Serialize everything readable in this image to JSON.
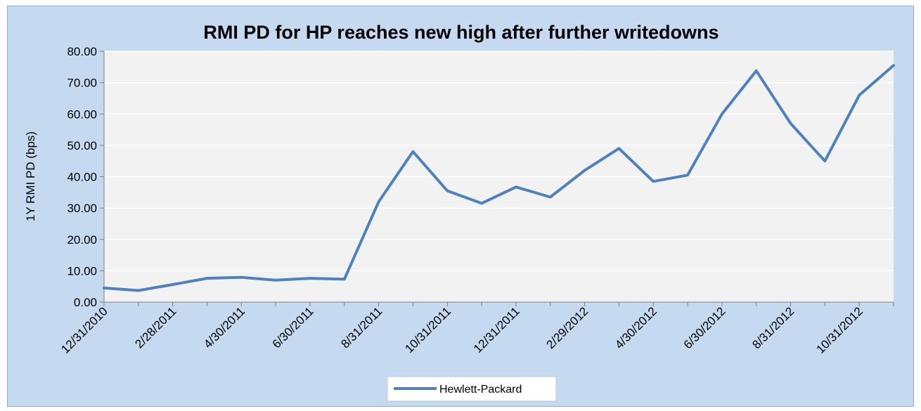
{
  "chart_data": {
    "type": "line",
    "title": "RMI PD for HP reaches new high after further writedowns",
    "xlabel": "",
    "ylabel": "1Y RMI PD (bps)",
    "ylim": [
      0,
      80
    ],
    "y_ticks": [
      "0.00",
      "10.00",
      "20.00",
      "30.00",
      "40.00",
      "50.00",
      "60.00",
      "70.00",
      "80.00"
    ],
    "x_tick_labels": [
      "12/31/2010",
      "2/28/2011",
      "4/30/2011",
      "6/30/2011",
      "8/31/2011",
      "10/31/2011",
      "12/31/2011",
      "2/29/2012",
      "4/30/2012",
      "6/30/2012",
      "8/31/2012",
      "10/31/2012"
    ],
    "x": [
      "12/31/2010",
      "1/31/2011",
      "2/28/2011",
      "3/31/2011",
      "4/30/2011",
      "5/31/2011",
      "6/30/2011",
      "7/31/2011",
      "8/31/2011",
      "9/30/2011",
      "10/31/2011",
      "11/30/2011",
      "12/31/2011",
      "1/31/2012",
      "2/29/2012",
      "3/31/2012",
      "4/30/2012",
      "5/31/2012",
      "6/30/2012",
      "7/31/2012",
      "8/31/2012",
      "9/30/2012",
      "10/31/2012",
      "11/30/2012"
    ],
    "series": [
      {
        "name": "Hewlett-Packard",
        "color": "#4f81bd",
        "values": [
          4.5,
          3.7,
          5.6,
          7.6,
          7.9,
          7.0,
          7.6,
          7.3,
          32.0,
          48.0,
          35.5,
          31.5,
          36.7,
          33.5,
          42.0,
          49.0,
          38.5,
          40.5,
          60.0,
          73.8,
          57.0,
          45.0,
          66.0,
          75.5
        ]
      }
    ],
    "grid": true,
    "legend_position": "bottom"
  }
}
